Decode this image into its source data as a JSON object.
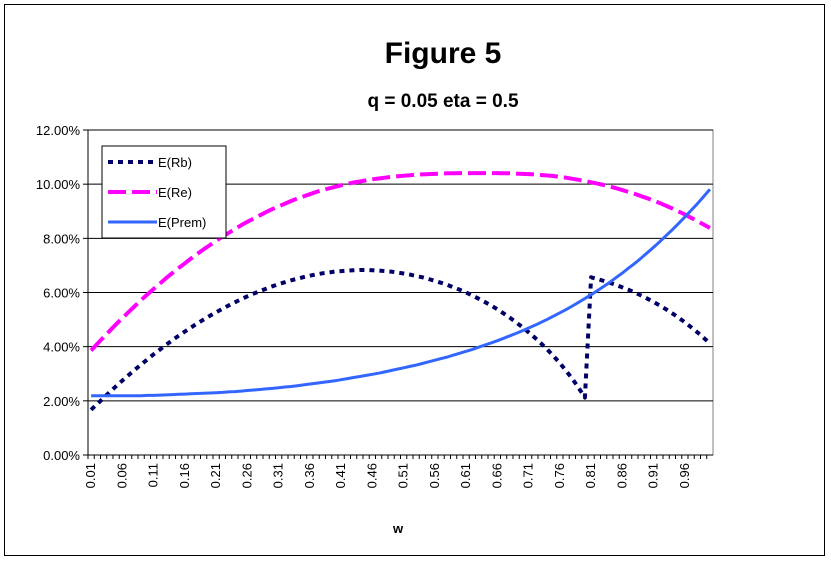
{
  "chart_data": {
    "type": "line",
    "title": "Figure 5",
    "subtitle": "q = 0.05 eta = 0.5",
    "xlabel": "w",
    "ylabel": "",
    "x": [
      0.01,
      0.02,
      0.03,
      0.04,
      0.05,
      0.06,
      0.07,
      0.08,
      0.09,
      0.1,
      0.11,
      0.12,
      0.13,
      0.14,
      0.15,
      0.16,
      0.17,
      0.18,
      0.19,
      0.2,
      0.21,
      0.22,
      0.23,
      0.24,
      0.25,
      0.26,
      0.27,
      0.28,
      0.29,
      0.3,
      0.31,
      0.32,
      0.33,
      0.34,
      0.35,
      0.36,
      0.37,
      0.38,
      0.39,
      0.4,
      0.41,
      0.42,
      0.43,
      0.44,
      0.45,
      0.46,
      0.47,
      0.48,
      0.49,
      0.5,
      0.51,
      0.52,
      0.53,
      0.54,
      0.55,
      0.56,
      0.57,
      0.58,
      0.59,
      0.6,
      0.61,
      0.62,
      0.63,
      0.64,
      0.65,
      0.66,
      0.67,
      0.68,
      0.69,
      0.7,
      0.71,
      0.72,
      0.73,
      0.74,
      0.75,
      0.76,
      0.77,
      0.78,
      0.79,
      0.8,
      0.81,
      0.82,
      0.83,
      0.84,
      0.85,
      0.86,
      0.87,
      0.88,
      0.89,
      0.9,
      0.91,
      0.92,
      0.93,
      0.94,
      0.95,
      0.96,
      0.97,
      0.98,
      0.99,
      1.0
    ],
    "x_tick_labels": [
      "0.01",
      "0.06",
      "0.11",
      "0.16",
      "0.21",
      "0.26",
      "0.31",
      "0.36",
      "0.41",
      "0.46",
      "0.51",
      "0.56",
      "0.61",
      "0.66",
      "0.71",
      "0.76",
      "0.81",
      "0.86",
      "0.91",
      "0.96"
    ],
    "y_tick_labels": [
      "0.00%",
      "2.00%",
      "4.00%",
      "6.00%",
      "8.00%",
      "10.00%",
      "12.00%"
    ],
    "ylim": [
      0,
      12
    ],
    "y_unit": "%",
    "grid": "horizontal major gridlines",
    "legend_position": "top-left inside plot",
    "series": [
      {
        "name": "E(Rb)",
        "color": "#000066",
        "style": "dotted",
        "values": [
          1.67,
          1.89,
          2.11,
          2.33,
          2.54,
          2.75,
          2.95,
          3.15,
          3.34,
          3.53,
          3.72,
          3.89,
          4.07,
          4.24,
          4.4,
          4.56,
          4.71,
          4.86,
          5.0,
          5.14,
          5.27,
          5.4,
          5.52,
          5.64,
          5.75,
          5.86,
          5.96,
          6.05,
          6.14,
          6.23,
          6.31,
          6.38,
          6.45,
          6.51,
          6.57,
          6.62,
          6.67,
          6.71,
          6.74,
          6.77,
          6.79,
          6.81,
          6.82,
          6.83,
          6.83,
          6.82,
          6.81,
          6.79,
          6.77,
          6.74,
          6.7,
          6.66,
          6.61,
          6.56,
          6.5,
          6.43,
          6.36,
          6.28,
          6.19,
          6.1,
          6.0,
          5.89,
          5.77,
          5.65,
          5.52,
          5.38,
          5.23,
          5.07,
          4.9,
          4.72,
          4.53,
          4.33,
          4.12,
          3.89,
          3.65,
          3.39,
          3.11,
          2.81,
          2.48,
          2.12,
          6.56,
          6.5,
          6.43,
          6.36,
          6.28,
          6.19,
          6.1,
          6.0,
          5.89,
          5.77,
          5.65,
          5.52,
          5.38,
          5.23,
          5.07,
          4.9,
          4.72,
          4.53,
          4.33,
          4.12
        ],
        "values_note": ""
      },
      {
        "name": "E(Re)",
        "color": "#FF00FF",
        "style": "dashed",
        "values": [
          3.86,
          4.11,
          4.35,
          4.59,
          4.83,
          5.06,
          5.28,
          5.5,
          5.72,
          5.93,
          6.13,
          6.33,
          6.53,
          6.72,
          6.9,
          7.08,
          7.26,
          7.43,
          7.59,
          7.75,
          7.91,
          8.06,
          8.2,
          8.34,
          8.48,
          8.61,
          8.73,
          8.85,
          8.97,
          9.08,
          9.18,
          9.28,
          9.38,
          9.47,
          9.55,
          9.63,
          9.71,
          9.78,
          9.84,
          9.9,
          9.96,
          10.01,
          10.06,
          10.1,
          10.14,
          10.18,
          10.21,
          10.24,
          10.27,
          10.29,
          10.31,
          10.33,
          10.35,
          10.36,
          10.37,
          10.38,
          10.39,
          10.4,
          10.4,
          10.41,
          10.41,
          10.41,
          10.41,
          10.41,
          10.41,
          10.41,
          10.4,
          10.4,
          10.39,
          10.38,
          10.37,
          10.36,
          10.34,
          10.32,
          10.3,
          10.27,
          10.24,
          10.2,
          10.16,
          10.11,
          10.07,
          10.02,
          9.97,
          9.91,
          9.85,
          9.78,
          9.71,
          9.64,
          9.56,
          9.48,
          9.39,
          9.3,
          9.2,
          9.1,
          8.99,
          8.88,
          8.76,
          8.64,
          8.51,
          8.38
        ]
      },
      {
        "name": "E(Prem)",
        "color": "#3366FF",
        "style": "solid",
        "values": [
          2.19,
          2.19,
          2.19,
          2.19,
          2.19,
          2.19,
          2.19,
          2.19,
          2.19,
          2.2,
          2.2,
          2.21,
          2.22,
          2.23,
          2.24,
          2.25,
          2.26,
          2.27,
          2.28,
          2.29,
          2.3,
          2.31,
          2.33,
          2.34,
          2.36,
          2.38,
          2.4,
          2.42,
          2.44,
          2.46,
          2.48,
          2.51,
          2.53,
          2.56,
          2.59,
          2.62,
          2.65,
          2.68,
          2.71,
          2.74,
          2.78,
          2.82,
          2.86,
          2.9,
          2.94,
          2.98,
          3.02,
          3.07,
          3.12,
          3.17,
          3.22,
          3.27,
          3.32,
          3.38,
          3.44,
          3.5,
          3.56,
          3.62,
          3.69,
          3.76,
          3.83,
          3.9,
          3.98,
          4.06,
          4.14,
          4.22,
          4.31,
          4.4,
          4.49,
          4.59,
          4.69,
          4.79,
          4.9,
          5.01,
          5.13,
          5.25,
          5.37,
          5.5,
          5.64,
          5.78,
          5.92,
          6.07,
          6.22,
          6.38,
          6.55,
          6.72,
          6.9,
          7.08,
          7.27,
          7.47,
          7.67,
          7.88,
          8.1,
          8.32,
          8.55,
          8.79,
          9.03,
          9.28,
          9.54,
          9.81
        ]
      }
    ]
  }
}
